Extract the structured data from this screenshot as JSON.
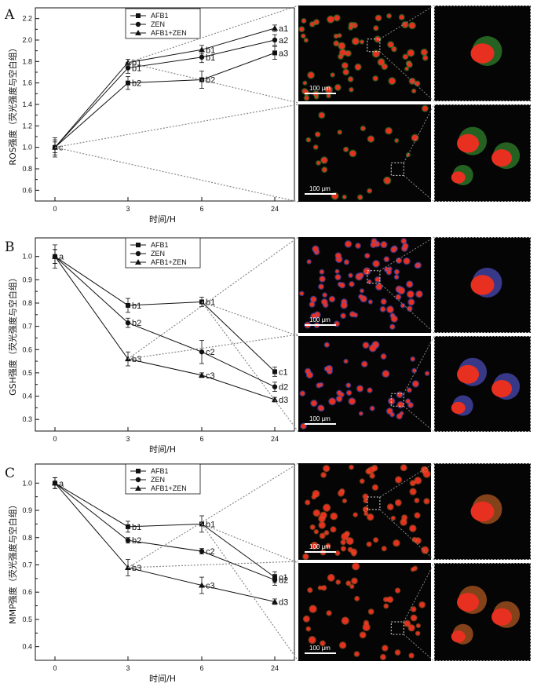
{
  "chart_data": [
    {
      "panel": "A",
      "type": "line",
      "x": [
        "0",
        "3",
        "6",
        "24"
      ],
      "ylim": [
        0.5,
        2.3
      ],
      "yticks": [
        0.6,
        0.8,
        1.0,
        1.2,
        1.4,
        1.6,
        1.8,
        2.0,
        2.2
      ],
      "ylabel": "ROS强度（荧光强度与空白组）",
      "xlabel": "时间/H",
      "legend_position": "top-center",
      "series": [
        {
          "name": "AFB1",
          "marker": "square",
          "values": [
            1.0,
            1.6,
            1.63,
            1.88
          ],
          "errors": [
            0.07,
            0.06,
            0.08,
            0.06
          ],
          "labels": [
            "c",
            "b2",
            "b2",
            "a3"
          ]
        },
        {
          "name": "ZEN",
          "marker": "circle",
          "values": [
            1.0,
            1.74,
            1.84,
            2.0
          ],
          "errors": [
            0.09,
            0.05,
            0.05,
            0.05
          ],
          "labels": [
            "",
            "b1",
            "b1",
            "a2"
          ]
        },
        {
          "name": "AFB1+ZEN",
          "marker": "triangle",
          "values": [
            1.0,
            1.79,
            1.91,
            2.11
          ],
          "errors": [
            0.05,
            0.03,
            0.04,
            0.03
          ],
          "labels": [
            "",
            "b1",
            "b1",
            "a1"
          ]
        }
      ],
      "scale_bar_labels": [
        "100 μm",
        "100 μm"
      ]
    },
    {
      "panel": "B",
      "type": "line",
      "x": [
        "0",
        "3",
        "6",
        "24"
      ],
      "ylim": [
        0.25,
        1.08
      ],
      "yticks": [
        0.3,
        0.4,
        0.5,
        0.6,
        0.7,
        0.8,
        0.9,
        1.0
      ],
      "ylabel": "GSH强度（荧光强度与空白组）",
      "xlabel": "时间/H",
      "legend_position": "top-center",
      "series": [
        {
          "name": "AFB1",
          "marker": "square",
          "values": [
            1.0,
            0.79,
            0.805,
            0.505
          ],
          "errors": [
            0.05,
            0.03,
            0.02,
            0.02
          ],
          "labels": [
            "a",
            "b1",
            "b1",
            "c1"
          ]
        },
        {
          "name": "ZEN",
          "marker": "circle",
          "values": [
            1.0,
            0.715,
            0.59,
            0.44
          ],
          "errors": [
            0.03,
            0.02,
            0.05,
            0.02
          ],
          "labels": [
            "",
            "b2",
            "c2",
            "d2"
          ]
        },
        {
          "name": "AFB1+ZEN",
          "marker": "triangle",
          "values": [
            1.0,
            0.56,
            0.49,
            0.385
          ],
          "errors": [
            0.03,
            0.03,
            0.01,
            0.01
          ],
          "labels": [
            "",
            "b3",
            "c3",
            "d3"
          ]
        }
      ],
      "scale_bar_labels": [
        "100 μm",
        "100 μm"
      ]
    },
    {
      "panel": "C",
      "type": "line",
      "x": [
        "0",
        "3",
        "6",
        "24"
      ],
      "ylim": [
        0.35,
        1.07
      ],
      "yticks": [
        0.4,
        0.5,
        0.6,
        0.7,
        0.8,
        0.9,
        1.0
      ],
      "ylabel": "MMP强度（荧光强度与空白组）",
      "xlabel": "时间/H",
      "legend_position": "top-center",
      "series": [
        {
          "name": "AFB1",
          "marker": "square",
          "values": [
            1.0,
            0.84,
            0.85,
            0.655
          ],
          "errors": [
            0.02,
            0.02,
            0.03,
            0.02
          ],
          "labels": [
            "a",
            "b1",
            "b1",
            "c1"
          ]
        },
        {
          "name": "ZEN",
          "marker": "circle",
          "values": [
            1.0,
            0.79,
            0.75,
            0.645
          ],
          "errors": [
            0.02,
            0.01,
            0.01,
            0.02
          ],
          "labels": [
            "",
            "b2",
            "c2",
            "d2"
          ]
        },
        {
          "name": "AFB1+ZEN",
          "marker": "triangle",
          "values": [
            1.0,
            0.69,
            0.625,
            0.565
          ],
          "errors": [
            0.02,
            0.03,
            0.03,
            0.01
          ],
          "labels": [
            "",
            "b3",
            "c3",
            "d3"
          ]
        }
      ],
      "scale_bar_labels": [
        "100 μm",
        "100 μm"
      ]
    }
  ],
  "colors": {
    "line": "#111111",
    "dotted": "#888888",
    "background": "#ffffff",
    "micrograph": "#050505",
    "nucleus": "#e83020",
    "ros_stain": "#3aa035",
    "gsh_stain": "#5a5ae0",
    "mmp_stain": "#d86a28"
  }
}
